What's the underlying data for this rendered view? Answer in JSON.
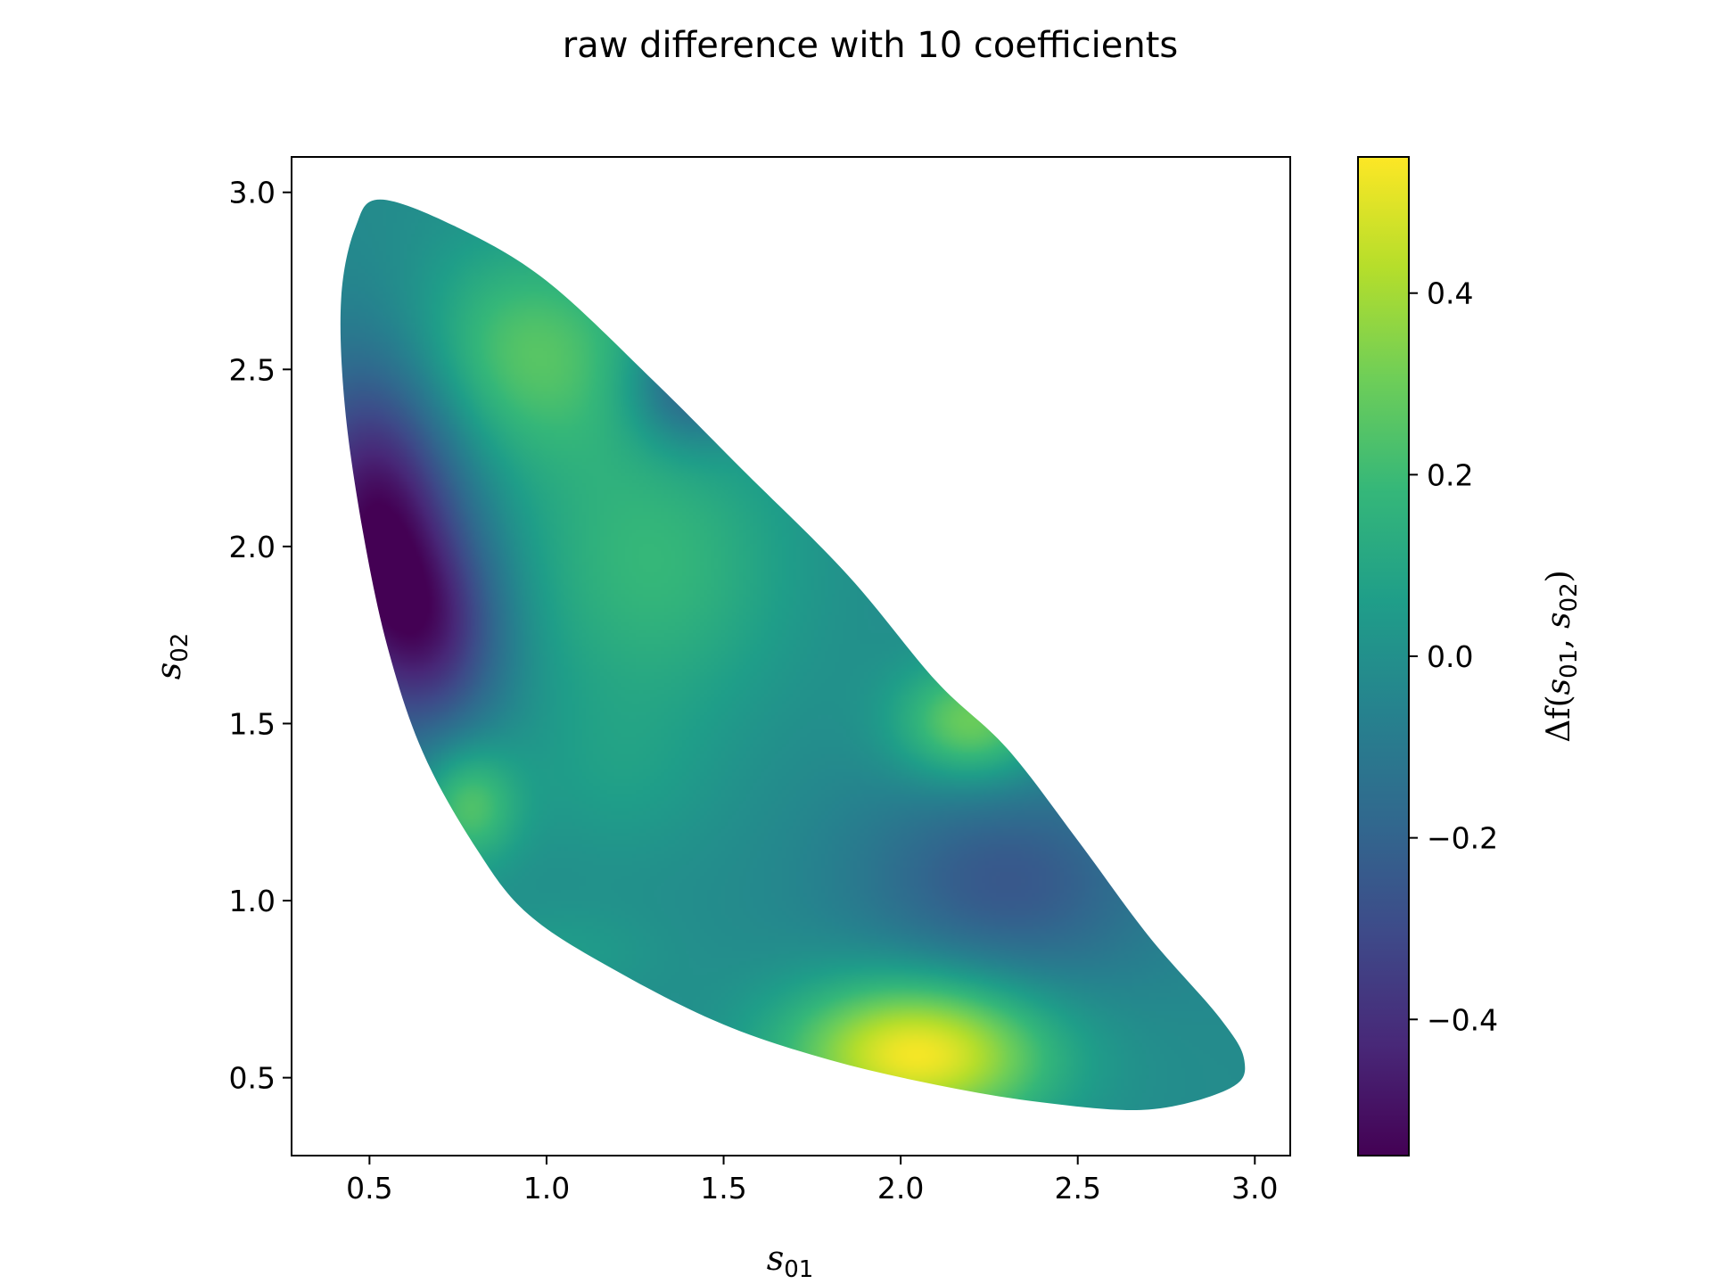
{
  "chart_data": {
    "type": "heatmap",
    "title": "raw difference with 10 coefficients",
    "xlabel": {
      "base": "s",
      "sub": "01"
    },
    "ylabel": {
      "base": "s",
      "sub": "02"
    },
    "colorbar_label": {
      "prefix": "Δf(",
      "a": "s",
      "a_sub": "01",
      "sep": ", ",
      "b": "s",
      "b_sub": "02",
      "suffix": ")"
    },
    "colormap": "viridis",
    "xlim": [
      0.28,
      3.1
    ],
    "ylim": [
      0.28,
      3.1
    ],
    "clim": [
      -0.55,
      0.55
    ],
    "x_ticks": [
      0.5,
      1.0,
      1.5,
      2.0,
      2.5,
      3.0
    ],
    "x_tick_labels": [
      "0.5",
      "1.0",
      "1.5",
      "2.0",
      "2.5",
      "3.0"
    ],
    "y_ticks": [
      0.5,
      1.0,
      1.5,
      2.0,
      2.5,
      3.0
    ],
    "y_tick_labels": [
      "0.5",
      "1.0",
      "1.5",
      "2.0",
      "2.5",
      "3.0"
    ],
    "colorbar_ticks": [
      -0.4,
      -0.2,
      0.0,
      0.2,
      0.4
    ],
    "colorbar_tick_labels": [
      "−0.4",
      "−0.2",
      "0.0",
      "0.2",
      "0.4"
    ],
    "region_boundary": [
      [
        0.53,
        2.98
      ],
      [
        0.75,
        2.9
      ],
      [
        1.0,
        2.75
      ],
      [
        1.3,
        2.47
      ],
      [
        1.55,
        2.22
      ],
      [
        1.85,
        1.92
      ],
      [
        2.1,
        1.62
      ],
      [
        2.3,
        1.43
      ],
      [
        2.5,
        1.17
      ],
      [
        2.7,
        0.9
      ],
      [
        2.9,
        0.67
      ],
      [
        2.97,
        0.55
      ],
      [
        2.93,
        0.47
      ],
      [
        2.7,
        0.41
      ],
      [
        2.4,
        0.43
      ],
      [
        2.1,
        0.48
      ],
      [
        1.8,
        0.55
      ],
      [
        1.5,
        0.65
      ],
      [
        1.2,
        0.8
      ],
      [
        0.95,
        0.96
      ],
      [
        0.8,
        1.15
      ],
      [
        0.65,
        1.42
      ],
      [
        0.55,
        1.72
      ],
      [
        0.48,
        2.05
      ],
      [
        0.43,
        2.4
      ],
      [
        0.42,
        2.7
      ],
      [
        0.46,
        2.9
      ]
    ],
    "features": [
      {
        "x": 0.52,
        "y": 2.05,
        "value": -0.55,
        "sx": 0.17,
        "sy": 0.33
      },
      {
        "x": 1.4,
        "y": 2.45,
        "value": -0.28,
        "sx": 0.12,
        "sy": 0.12
      },
      {
        "x": 0.95,
        "y": 2.55,
        "value": 0.25,
        "sx": 0.25,
        "sy": 0.22
      },
      {
        "x": 1.3,
        "y": 1.95,
        "value": 0.18,
        "sx": 0.28,
        "sy": 0.3
      },
      {
        "x": 2.05,
        "y": 0.57,
        "value": 0.55,
        "sx": 0.26,
        "sy": 0.15
      },
      {
        "x": 2.2,
        "y": 1.5,
        "value": 0.32,
        "sx": 0.15,
        "sy": 0.12
      },
      {
        "x": 2.3,
        "y": 1.05,
        "value": -0.25,
        "sx": 0.3,
        "sy": 0.22
      },
      {
        "x": 0.78,
        "y": 1.27,
        "value": 0.25,
        "sx": 0.1,
        "sy": 0.12
      },
      {
        "x": 1.2,
        "y": 1.35,
        "value": 0.05,
        "sx": 0.2,
        "sy": 0.18
      },
      {
        "x": 1.05,
        "y": 0.85,
        "value": 0.05,
        "sx": 0.2,
        "sy": 0.1
      },
      {
        "x": 0.7,
        "y": 1.75,
        "value": -0.3,
        "sx": 0.14,
        "sy": 0.2
      }
    ],
    "base_value": -0.02,
    "grid": false,
    "colorbar_position": "right"
  }
}
